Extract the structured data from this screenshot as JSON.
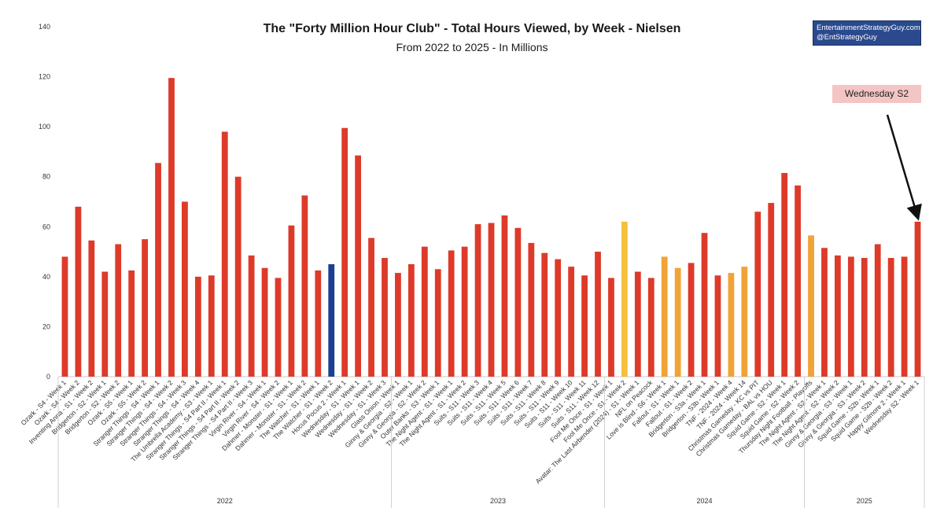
{
  "chart_data": {
    "type": "bar",
    "title": "The \"Forty Million Hour Club\" - Total Hours Viewed, by Week - Nielsen",
    "subtitle": "From 2022 to 2025 - In Millions",
    "ylim": [
      0,
      140
    ],
    "yticks": [
      0,
      20,
      40,
      60,
      80,
      100,
      120,
      140
    ],
    "grid": false,
    "colors": {
      "red": "#dd3a2a",
      "orange": "#f0a336",
      "yellow": "#f5c03c",
      "blue": "#1d3f8f"
    },
    "categories": [
      "Ozark - S4 - Week 1",
      "Ozark - S4 - Week 2",
      "Inventing Anna - S1 - Week 2",
      "Bridgerton - S2 - Week 1",
      "Bridgerton - S2 - Week 2",
      "Ozark - S5 - Week 1",
      "Ozark - S5 - Week 2",
      "Stranger Things - S4 - Week 1",
      "Stranger Things - S4 - Week 2",
      "Stranger Things - S4 - Week 3",
      "Stranger Things - S4 - Week 4",
      "The Umbrella Academy - S3 - Week 1",
      "Stranger Things - S4 Part II - Week 1",
      "Stranger Things - S4 Part II - Week 2",
      "Stranger Things - S4 Part II - Week 3",
      "Virgin River - S4 - Week 1",
      "Virgin River - S4 - Week 2",
      "Dahmer - Monster - S1 - Week 1",
      "Dahmer - Monster - S1 - Week 2",
      "The Watcher - S1 - Week 1",
      "The Watcher - S1 - Week 2",
      "Hocus Pocus 2 - Week 1",
      "Wednesday - S1 - Week 1",
      "Wednesday - S1 - Week 2",
      "Wednesday - S1 - Week 3",
      "Glass Onion - Week 1",
      "Ginny & Georgia - S2 - Week 1",
      "Ginny & Georgia - S2 - Week 2",
      "Outer Banks - S3 - Week 1",
      "The Night Agent - S1 - Week 1",
      "The Night Agent - S1 - Week 2",
      "Suits - S11 - Week 3",
      "Suits - S11 - Week 4",
      "Suits - S11 - Week 5",
      "Suits - S11 - Week 6",
      "Suits - S11 - Week 7",
      "Suits - S11 - Week 8",
      "Suits - S11 - Week 9",
      "Suits - S11 - Week 10",
      "Suits - S11 - Week 11",
      "Suits - S11 - Week 12",
      "Fool Me Once - S1 - Week 1",
      "Fool Me Once - S1 - Week 2",
      "Avatar: The Last Airbender (2024) - S1 - Week 1",
      "NFL on Peacock",
      "Love is Blind - S6 - Week 1",
      "Fallout - S1 - Week 1",
      "Fallout - S1 - Week 2",
      "Bridgerton - S3a - Week 1",
      "Bridgerton - S3b - Week 1",
      "TNF - 2024 - Week 4",
      "TNF - 2024 - Week 14",
      "Christmas Gameday - KC vs PIT",
      "Christmas Gameday - BAL vs HOU",
      "Squid Game - S2 - Week 1",
      "Squid Game - S2 - Week 2",
      "Thursday Night Football - Playoffs",
      "The Night Agent - S2 - Week 1",
      "The Night Agent - S2 - Week 2",
      "Ginny & Georgia - S3 - Week 1",
      "Ginny & Georgia - S3 - Week 2",
      "Squid Game - S2b - Week 1",
      "Squid Game - S2b - Week 2",
      "Happy Gilmore 2 - Week 1",
      "Wednesday S2 - Week 1"
    ],
    "values": [
      48,
      68,
      54.5,
      42,
      53,
      42.5,
      55,
      85.5,
      119.5,
      70,
      40,
      40.5,
      98,
      80,
      48.5,
      43.5,
      39.5,
      60.5,
      72.5,
      42.5,
      45,
      99.5,
      88.5,
      55.5,
      47.5,
      41.5,
      45,
      52,
      43,
      50.5,
      52,
      61,
      61.5,
      64.5,
      59.5,
      53.5,
      49.5,
      47,
      44,
      40.5,
      50,
      39.5,
      62,
      42,
      39.5,
      48,
      43.5,
      45.5,
      57.5,
      40.5,
      41.5,
      44,
      66,
      69.5,
      81.5,
      76.5,
      56.5,
      51.5,
      48.5,
      48,
      47.5,
      53,
      47.5,
      48,
      62
    ],
    "bar_colors": [
      "red",
      "red",
      "red",
      "red",
      "red",
      "red",
      "red",
      "red",
      "red",
      "red",
      "red",
      "red",
      "red",
      "red",
      "red",
      "red",
      "red",
      "red",
      "red",
      "red",
      "blue",
      "red",
      "red",
      "red",
      "red",
      "red",
      "red",
      "red",
      "red",
      "red",
      "red",
      "red",
      "red",
      "red",
      "red",
      "red",
      "red",
      "red",
      "red",
      "red",
      "red",
      "red",
      "yellow",
      "red",
      "red",
      "orange",
      "orange",
      "red",
      "red",
      "red",
      "orange",
      "orange",
      "red",
      "red",
      "red",
      "red",
      "orange",
      "red",
      "red",
      "red",
      "red",
      "red",
      "red",
      "red",
      "red"
    ],
    "groups": [
      {
        "label": "2022",
        "start": 0,
        "end": 24
      },
      {
        "label": "2023",
        "start": 25,
        "end": 40
      },
      {
        "label": "2024",
        "start": 41,
        "end": 55
      },
      {
        "label": "2025",
        "start": 56,
        "end": 64
      }
    ],
    "annotation": {
      "label": "Wednesday S2",
      "target_index": 64
    }
  },
  "watermark": {
    "line1": "EntertainmentStrategyGuy.com",
    "line2": "@EntStrategyGuy"
  }
}
